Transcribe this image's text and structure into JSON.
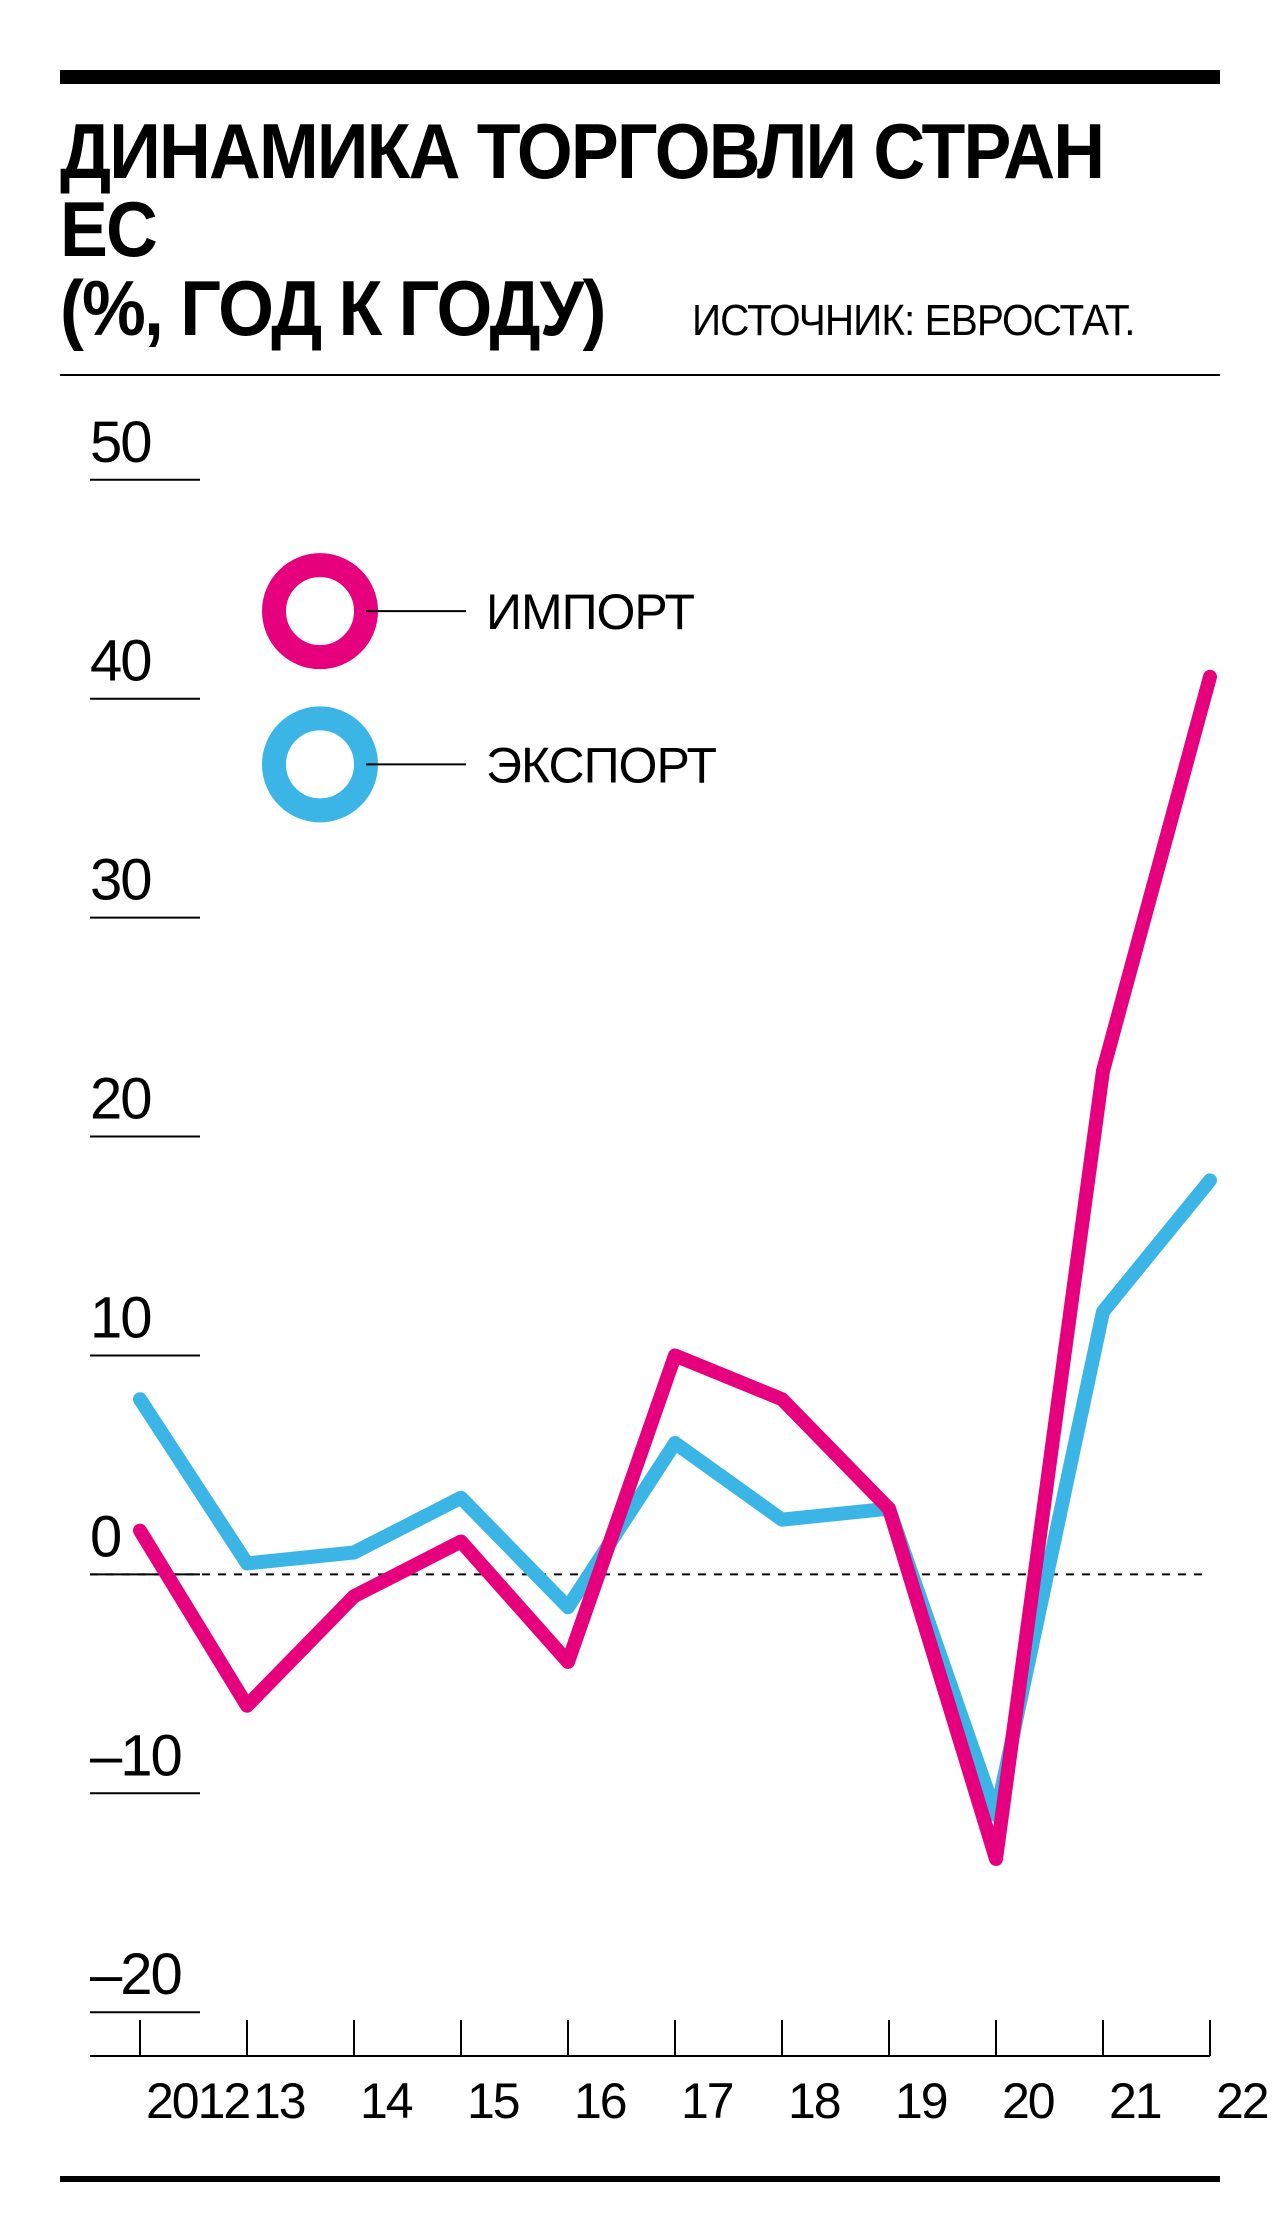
{
  "title_line1": "ДИНАМИКА ТОРГОВЛИ СТРАН ЕС",
  "title_line2": "(%, ГОД К ГОДУ)",
  "source": "ИСТОЧНИК: ЕВРОСТАТ.",
  "chart": {
    "type": "line",
    "x_labels": [
      "2012",
      "13",
      "14",
      "15",
      "16",
      "17",
      "18",
      "19",
      "20",
      "21",
      "22"
    ],
    "y_ticks": [
      -20,
      -10,
      0,
      10,
      20,
      30,
      40,
      50
    ],
    "y_min": -22,
    "y_max": 52,
    "series": [
      {
        "name": "ИМПОРТ",
        "color": "#e6007e",
        "line_width": 14,
        "values": [
          2,
          -6,
          -1,
          1.5,
          -4,
          10,
          8,
          3,
          -13,
          23,
          41
        ]
      },
      {
        "name": "ЭКСПОРТ",
        "color": "#3bb5e6",
        "line_width": 14,
        "values": [
          8,
          0.5,
          1,
          3.5,
          -1.5,
          6,
          2.5,
          3,
          -11,
          12,
          18
        ]
      }
    ],
    "legend_ring_outer_r": 46,
    "legend_ring_stroke": 24,
    "zero_dash": "8 8",
    "axis_color": "#000000",
    "tick_stroke": 2,
    "background": "#ffffff"
  },
  "fonts": {
    "title_size": 78,
    "title_weight": 900,
    "source_size": 44,
    "ytick_size": 58,
    "xtick_size": 50,
    "legend_size": 50
  }
}
